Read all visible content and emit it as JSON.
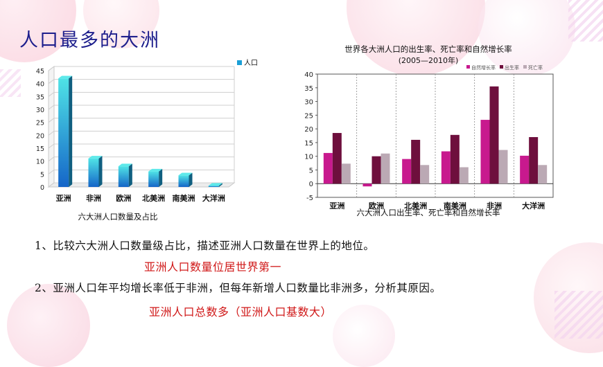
{
  "slide": {
    "title": "人口最多的大洲",
    "q1": "1、比较六大洲人口数量级占比，描述亚洲人口数量在世界上的地位。",
    "a1": "亚洲人口数量位居世界第一",
    "q2": "2、亚洲人口年平均增长率低于非洲，但每年新增人口数量比非洲多，分析其原因。",
    "a2": "亚洲人口总数多（亚洲人口基数大）"
  },
  "colors": {
    "left_bar": "#1b9fd6",
    "natural_growth": "#c8198e",
    "birth_rate": "#6e0f3d",
    "death_rate": "#bba9b4"
  },
  "chart_data": [
    {
      "type": "bar",
      "categories": [
        "亚洲",
        "非洲",
        "欧洲",
        "北美洲",
        "南美洲",
        "大洋洲"
      ],
      "series": [
        {
          "name": "人口",
          "values": [
            42,
            11,
            8,
            6,
            4.5,
            0.5
          ]
        }
      ],
      "ylim": [
        0,
        45
      ],
      "yticks": [
        0,
        5,
        10,
        15,
        20,
        25,
        30,
        35,
        40,
        45
      ],
      "caption": "六大洲人口数量及占比",
      "legend": "top-right",
      "grid": true
    },
    {
      "type": "bar",
      "title": "世界各大洲人口的出生率、死亡率和自然增长率",
      "subtitle": "(2005—2010年)",
      "categories": [
        "亚洲",
        "欧洲",
        "北美洲",
        "南美洲",
        "非洲",
        "大洋洲"
      ],
      "series": [
        {
          "name": "自然增长率",
          "values": [
            11.2,
            -1,
            9,
            11.8,
            23.3,
            10.2
          ]
        },
        {
          "name": "出生率",
          "values": [
            18.5,
            10,
            16,
            17.8,
            35.5,
            17
          ]
        },
        {
          "name": "死亡率",
          "values": [
            7.3,
            11,
            6.8,
            6,
            12.3,
            6.8
          ]
        }
      ],
      "ylim": [
        -5,
        40
      ],
      "yticks": [
        -5,
        0,
        5,
        10,
        15,
        20,
        25,
        30,
        35,
        40
      ],
      "caption": "六大洲人口出生率、死亡率和自然增长率",
      "legend": "top-right",
      "grid": true
    }
  ]
}
